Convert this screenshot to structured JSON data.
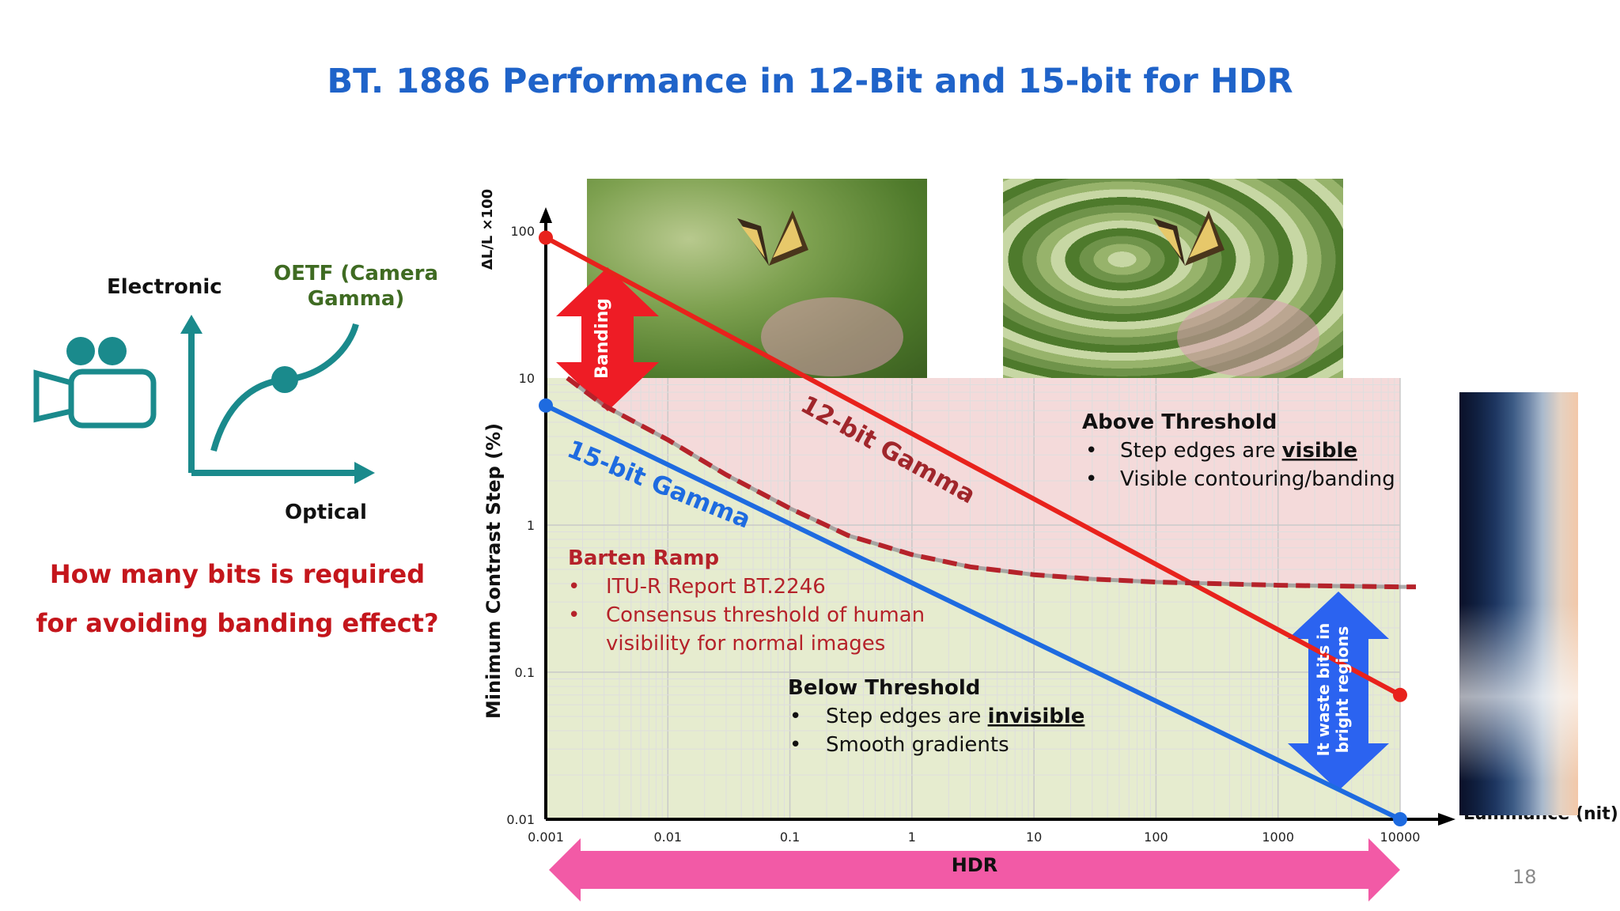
{
  "slide": {
    "title": "BT. 1886 Performance in 12-Bit and 15-bit for HDR",
    "page_number": "18",
    "question": "How many bits is required for avoiding banding effect?"
  },
  "diagram": {
    "electronic_label": "Electronic",
    "optical_label": "Optical",
    "oetf_label": "OETF (Camera Gamma)",
    "icon": "video-camera-icon",
    "color": "#1a8a8c"
  },
  "chart_data": {
    "type": "line",
    "x_scale": "log",
    "y_scale": "log",
    "xlim": [
      0.001,
      10000
    ],
    "ylim": [
      0.01,
      100
    ],
    "x_ticks": [
      "0.001",
      "0.01",
      "0.1",
      "1",
      "10",
      "100",
      "1000",
      "10000"
    ],
    "y_ticks": [
      "0.01",
      "0.1",
      "1",
      "10",
      "100"
    ],
    "ylabel": "Minimum Contrast Step (%)",
    "y_formula": "ΔL/L ×100",
    "xlabel": "Luminance (nit)",
    "series": [
      {
        "name": "12-bit Gamma",
        "color": "#e8221c",
        "x": [
          0.001,
          10000
        ],
        "y": [
          90,
          0.07
        ]
      },
      {
        "name": "15-bit Gamma",
        "color": "#1e6be0",
        "x": [
          0.001,
          10000
        ],
        "y": [
          6.5,
          0.01
        ]
      },
      {
        "name": "Barten Ramp",
        "color": "#b5222a",
        "style": "dashed",
        "x": [
          0.0015,
          0.003,
          0.01,
          0.03,
          0.1,
          0.3,
          1,
          3,
          10,
          30,
          100,
          300,
          1000,
          3000,
          10000,
          20000
        ],
        "y": [
          10,
          6.5,
          3.8,
          2.2,
          1.3,
          0.85,
          0.63,
          0.52,
          0.46,
          0.43,
          0.41,
          0.4,
          0.39,
          0.385,
          0.38,
          0.38
        ]
      }
    ],
    "annotations": {
      "banding": "Banding",
      "label_12bit": "12-bit Gamma",
      "label_15bit": "15-bit Gamma",
      "above_title": "Above Threshold",
      "above_b1_pre": "Step edges are ",
      "above_b1_em": "visible",
      "above_b2": "Visible contouring/banding",
      "below_title": "Below Threshold",
      "below_b1_pre": "Step edges are ",
      "below_b1_em": "invisible",
      "below_b2": "Smooth gradients",
      "barten_title": "Barten Ramp",
      "barten_b1": "ITU-R Report BT.2246",
      "barten_b2_line1": "Consensus threshold of  human",
      "barten_b2_line2": "visibility for normal images",
      "waste_line1": "It waste bits in",
      "waste_line2": "bright regions",
      "hdr": "HDR"
    },
    "colors": {
      "above_region": "#f4dada",
      "below_region": "#e6eccf",
      "banding_arrow": "#ee1c25",
      "waste_arrow": "#2b63f0",
      "hdr_arrow": "#f25aa6"
    }
  }
}
